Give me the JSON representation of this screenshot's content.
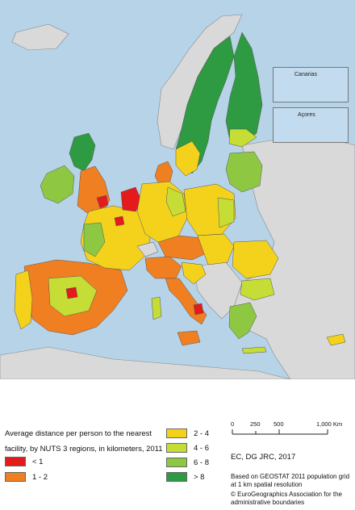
{
  "insets": {
    "canarias": "Canarias",
    "acores": "Açores"
  },
  "legend": {
    "title_line1": "Average distance per person to the nearest",
    "title_line2": "facility, by NUTS 3 regions, in kilometers, 2011",
    "classes": [
      {
        "label": "< 1",
        "color": "#e41a1c"
      },
      {
        "label": "1 - 2",
        "color": "#f07f22"
      },
      {
        "label": "2 - 4",
        "color": "#f4d21c"
      },
      {
        "label": "4 - 6",
        "color": "#c6dd35"
      },
      {
        "label": "6 - 8",
        "color": "#8ec843"
      },
      {
        "label": "> 8",
        "color": "#2e9a41"
      }
    ]
  },
  "scale": {
    "ticks": [
      "0",
      "250",
      "500",
      "1,000 Km"
    ]
  },
  "credits": {
    "source": "EC, DG JRC,  2017",
    "based_on_1": "Based on GEOSTAT 2011 population grid",
    "based_on_2": "at 1 km spatial resolution",
    "copyright_1": "© EuroGeographics Association for the",
    "copyright_2": "administrative boundaries"
  },
  "colors": {
    "sea": "#b7d3e8",
    "non_eu_land": "#d9d9d9",
    "border": "#5a5a5a"
  }
}
